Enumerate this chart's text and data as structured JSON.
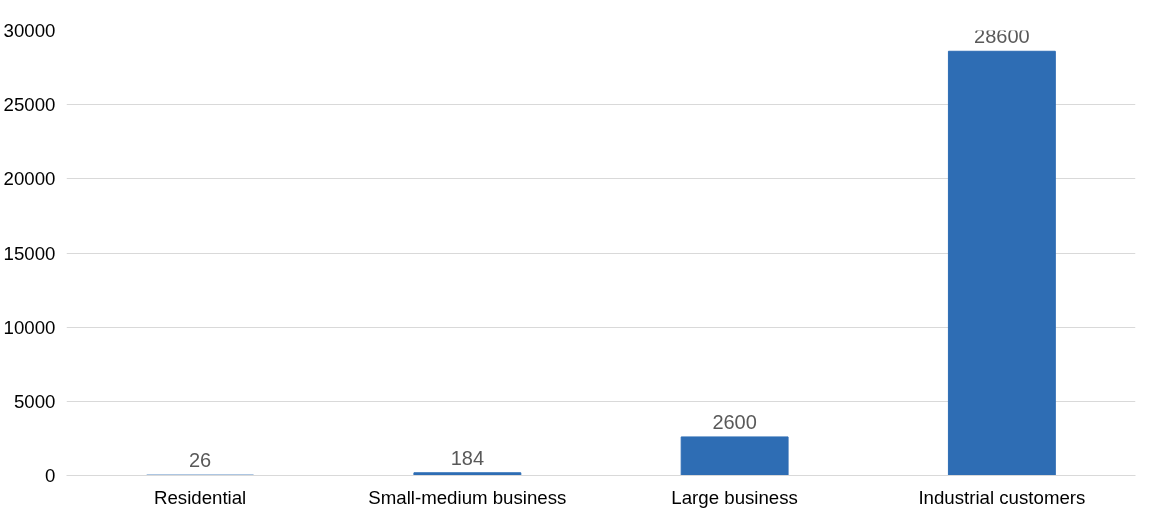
{
  "chart_data": {
    "type": "bar",
    "categories": [
      "Residential",
      "Small-medium business",
      "Large business",
      "Industrial customers"
    ],
    "values": [
      26,
      184,
      2600,
      28600
    ],
    "color": "#2e6db4",
    "ylim": [
      0,
      30000
    ],
    "yticks": [
      0,
      5000,
      10000,
      15000,
      20000,
      25000,
      30000
    ],
    "grid": "y",
    "data_labels": true
  }
}
